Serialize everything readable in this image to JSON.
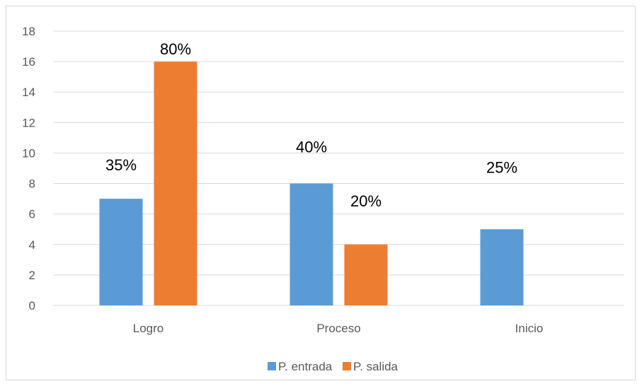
{
  "chart_data": {
    "type": "bar",
    "categories": [
      "Logro",
      "Proceso",
      "Inicio"
    ],
    "series": [
      {
        "name": "P. entrada",
        "values": [
          7,
          8,
          5
        ],
        "labels": [
          "35%",
          "40%",
          "25%"
        ],
        "color": "#5B9BD5"
      },
      {
        "name": "P. salida",
        "values": [
          16,
          4,
          0
        ],
        "labels": [
          "80%",
          "20%",
          ""
        ],
        "color": "#ED7D31"
      }
    ],
    "ylim": [
      0,
      18
    ],
    "yticks": [
      0,
      2,
      4,
      6,
      8,
      10,
      12,
      14,
      16,
      18
    ],
    "grid": true,
    "legend": "bottom",
    "gridColor": "#d9d9d9"
  }
}
